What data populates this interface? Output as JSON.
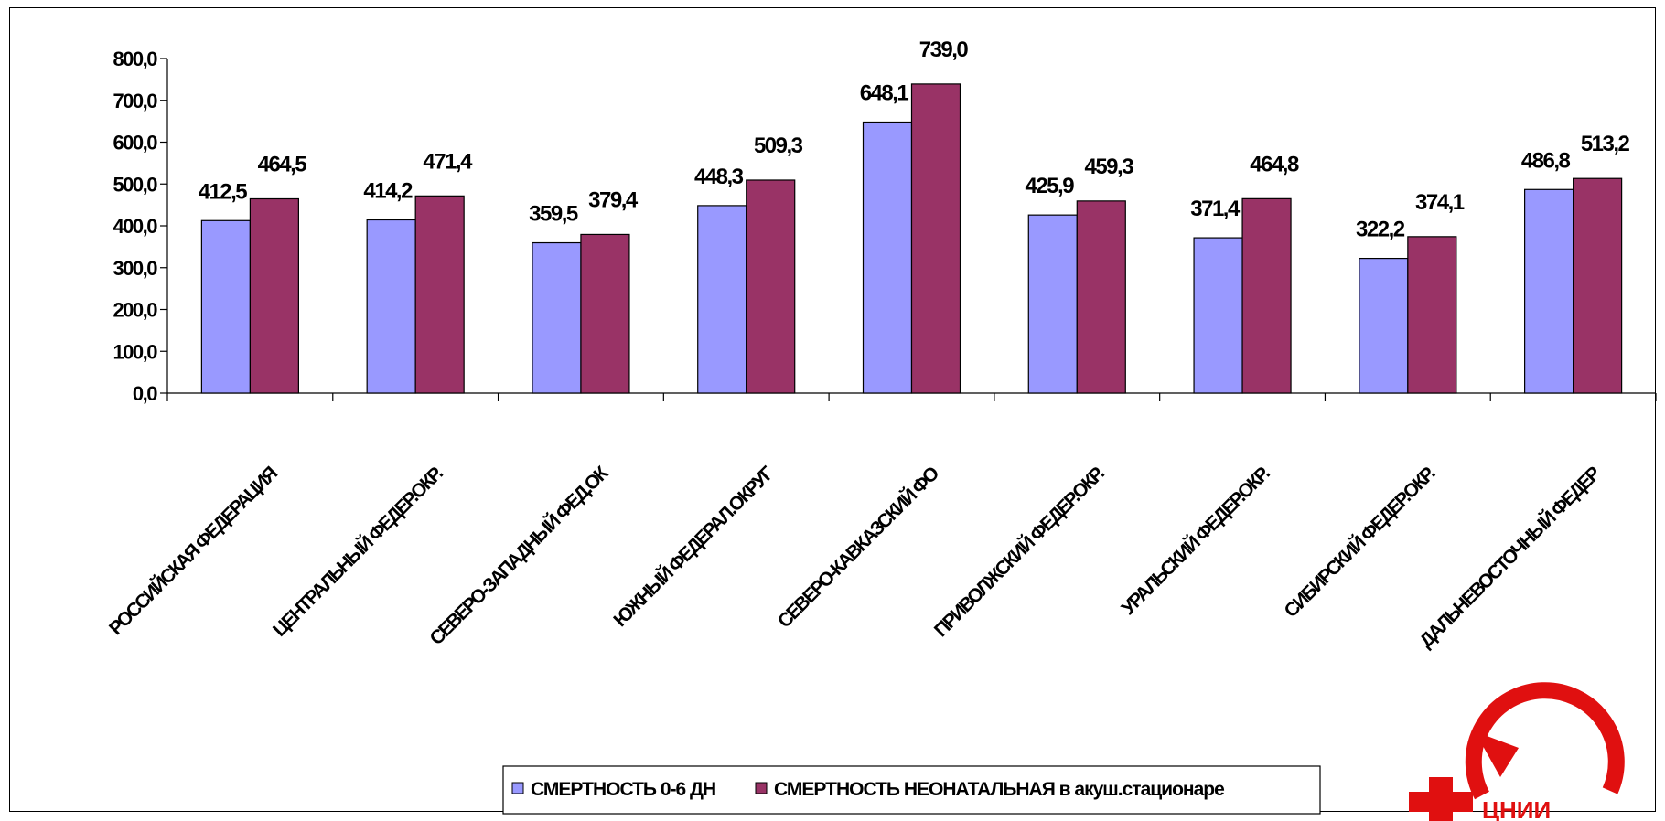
{
  "chart_data": {
    "type": "bar",
    "categories": [
      "РОССИЙСКАЯ ФЕДЕРАЦИЯ",
      "ЦЕНТРАЛЬНЫЙ ФЕДЕР.ОКР.",
      "СЕВЕРО-ЗАПАДНЫЙ ФЕД.ОК",
      "ЮЖНЫЙ ФЕДЕРАЛ.ОКРУГ",
      "СЕВЕРО-КАВКАЗСКИЙ ФО",
      "ПРИВОЛЖСКИЙ ФЕДЕР.ОКР.",
      "УРАЛЬСКИЙ ФЕДЕР.ОКР.",
      "СИБИРСКИЙ ФЕДЕР.ОКР.",
      "ДАЛЬНЕВОСТОЧНЫЙ ФЕДЕР"
    ],
    "series": [
      {
        "name": "СМЕРТНОСТЬ 0-6 ДН",
        "color": "#9999ff",
        "values": [
          412.5,
          414.2,
          359.5,
          448.3,
          648.1,
          425.9,
          371.4,
          322.2,
          486.8
        ],
        "labels": [
          "412,5",
          "414,2",
          "359,5",
          "448,3",
          "648,1",
          "425,9",
          "371,4",
          "322,2",
          "486,8"
        ]
      },
      {
        "name": "СМЕРТНОСТЬ НЕОНАТАЛЬНАЯ в акуш.стационаре",
        "color": "#993366",
        "values": [
          464.5,
          471.4,
          379.4,
          509.3,
          739.0,
          459.3,
          464.8,
          374.1,
          513.2
        ],
        "labels": [
          "464,5",
          "471,4",
          "379,4",
          "509,3",
          "739,0",
          "459,3",
          "464,8",
          "374,1",
          "513,2"
        ]
      }
    ],
    "ylim": [
      0,
      800
    ],
    "yticks": [
      "0,0",
      "100,0",
      "200,0",
      "300,0",
      "400,0",
      "500,0",
      "600,0",
      "700,0",
      "800,0"
    ],
    "grid": false,
    "legend_position": "bottom",
    "title": "",
    "xlabel": "",
    "ylabel": ""
  },
  "logo": {
    "name": "red-cross-arrow-logo",
    "text": "ЦНИИ"
  }
}
